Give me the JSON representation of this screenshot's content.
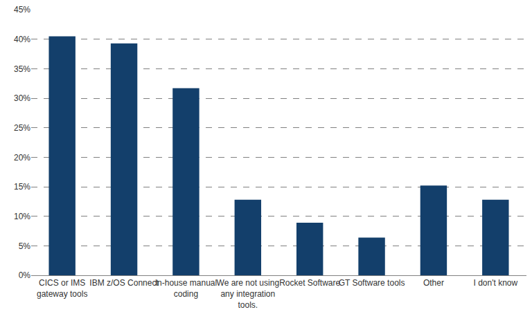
{
  "chart_data": {
    "type": "bar",
    "categories": [
      "CICS or IMS gateway tools",
      "IBM z/OS Connect",
      "In-house manual coding",
      "We are not using any integration tools.",
      "Rocket Software",
      "GT Software tools",
      "Other",
      "I don't know"
    ],
    "values": [
      40.5,
      39.3,
      31.7,
      12.8,
      8.9,
      6.4,
      15.2,
      12.8
    ],
    "color": "#133f6b",
    "ylim": [
      0,
      45
    ],
    "yticks": [
      {
        "value": 0,
        "label": "0%"
      },
      {
        "value": 5,
        "label": "5%"
      },
      {
        "value": 10,
        "label": "10%"
      },
      {
        "value": 15,
        "label": "15%"
      },
      {
        "value": 20,
        "label": "20%"
      },
      {
        "value": 25,
        "label": "25%"
      },
      {
        "value": 30,
        "label": "30%"
      },
      {
        "value": 35,
        "label": "35%"
      },
      {
        "value": 40,
        "label": "40%"
      },
      {
        "value": 45,
        "label": "45%"
      }
    ],
    "grid": true
  }
}
